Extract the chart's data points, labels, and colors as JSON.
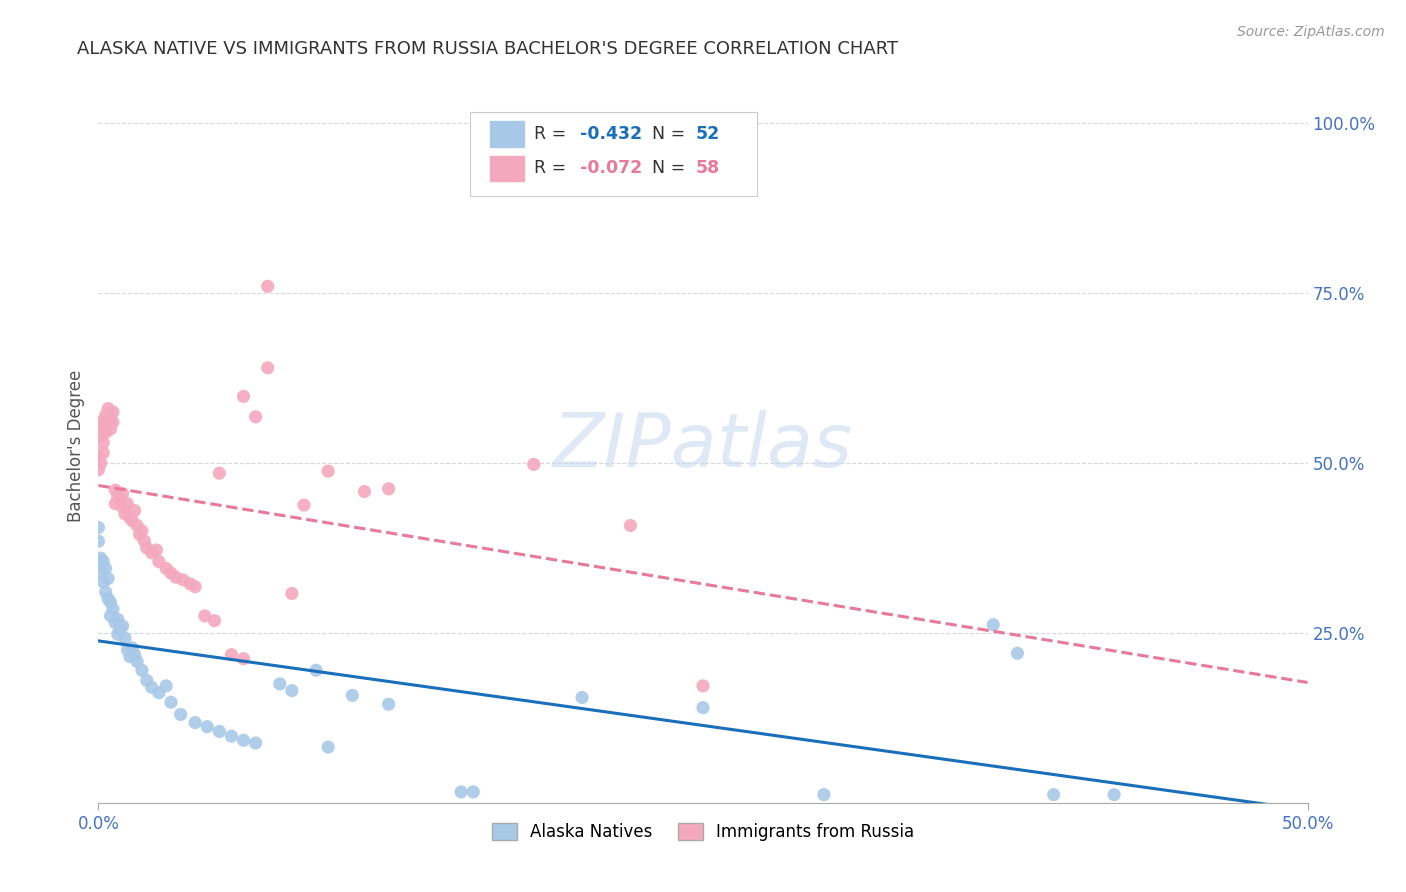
{
  "title": "ALASKA NATIVE VS IMMIGRANTS FROM RUSSIA BACHELOR'S DEGREE CORRELATION CHART",
  "source": "Source: ZipAtlas.com",
  "ylabel": "Bachelor's Degree",
  "right_yticks": [
    "100.0%",
    "75.0%",
    "50.0%",
    "25.0%"
  ],
  "right_ytick_vals": [
    1.0,
    0.75,
    0.5,
    0.25
  ],
  "legend_bottom": [
    "Alaska Natives",
    "Immigrants from Russia"
  ],
  "blue_line_color": "#1a6fba",
  "pink_line_color": "#e8799a",
  "blue_dot_color": "#a8c8e8",
  "pink_dot_color": "#f4a8c0",
  "bg_color": "#ffffff",
  "grid_color": "#d8d8d8",
  "title_color": "#333333",
  "axis_color": "#4472c4",
  "xlim": [
    0.0,
    0.5
  ],
  "ylim": [
    0.0,
    1.05
  ],
  "blue_scatter": [
    [
      0.0,
      0.405
    ],
    [
      0.0,
      0.385
    ],
    [
      0.001,
      0.36
    ],
    [
      0.001,
      0.34
    ],
    [
      0.002,
      0.355
    ],
    [
      0.002,
      0.325
    ],
    [
      0.003,
      0.345
    ],
    [
      0.003,
      0.31
    ],
    [
      0.004,
      0.33
    ],
    [
      0.004,
      0.3
    ],
    [
      0.005,
      0.295
    ],
    [
      0.005,
      0.275
    ],
    [
      0.006,
      0.285
    ],
    [
      0.007,
      0.265
    ],
    [
      0.008,
      0.27
    ],
    [
      0.008,
      0.248
    ],
    [
      0.009,
      0.255
    ],
    [
      0.01,
      0.26
    ],
    [
      0.011,
      0.242
    ],
    [
      0.012,
      0.225
    ],
    [
      0.013,
      0.215
    ],
    [
      0.014,
      0.228
    ],
    [
      0.015,
      0.218
    ],
    [
      0.016,
      0.208
    ],
    [
      0.018,
      0.195
    ],
    [
      0.02,
      0.18
    ],
    [
      0.022,
      0.17
    ],
    [
      0.025,
      0.162
    ],
    [
      0.028,
      0.172
    ],
    [
      0.03,
      0.148
    ],
    [
      0.034,
      0.13
    ],
    [
      0.04,
      0.118
    ],
    [
      0.045,
      0.112
    ],
    [
      0.05,
      0.105
    ],
    [
      0.055,
      0.098
    ],
    [
      0.06,
      0.092
    ],
    [
      0.065,
      0.088
    ],
    [
      0.075,
      0.175
    ],
    [
      0.08,
      0.165
    ],
    [
      0.09,
      0.195
    ],
    [
      0.095,
      0.082
    ],
    [
      0.105,
      0.158
    ],
    [
      0.12,
      0.145
    ],
    [
      0.15,
      0.016
    ],
    [
      0.155,
      0.016
    ],
    [
      0.2,
      0.155
    ],
    [
      0.25,
      0.14
    ],
    [
      0.3,
      0.012
    ],
    [
      0.37,
      0.262
    ],
    [
      0.38,
      0.22
    ],
    [
      0.395,
      0.012
    ],
    [
      0.42,
      0.012
    ]
  ],
  "pink_scatter": [
    [
      0.0,
      0.49
    ],
    [
      0.0,
      0.51
    ],
    [
      0.001,
      0.5
    ],
    [
      0.001,
      0.54
    ],
    [
      0.001,
      0.56
    ],
    [
      0.002,
      0.555
    ],
    [
      0.002,
      0.53
    ],
    [
      0.002,
      0.515
    ],
    [
      0.003,
      0.57
    ],
    [
      0.003,
      0.545
    ],
    [
      0.004,
      0.58
    ],
    [
      0.004,
      0.555
    ],
    [
      0.005,
      0.565
    ],
    [
      0.005,
      0.55
    ],
    [
      0.006,
      0.575
    ],
    [
      0.006,
      0.56
    ],
    [
      0.007,
      0.44
    ],
    [
      0.007,
      0.46
    ],
    [
      0.008,
      0.45
    ],
    [
      0.009,
      0.445
    ],
    [
      0.01,
      0.435
    ],
    [
      0.01,
      0.455
    ],
    [
      0.011,
      0.425
    ],
    [
      0.012,
      0.44
    ],
    [
      0.013,
      0.42
    ],
    [
      0.014,
      0.415
    ],
    [
      0.015,
      0.43
    ],
    [
      0.016,
      0.408
    ],
    [
      0.017,
      0.395
    ],
    [
      0.018,
      0.4
    ],
    [
      0.019,
      0.385
    ],
    [
      0.02,
      0.375
    ],
    [
      0.022,
      0.368
    ],
    [
      0.024,
      0.372
    ],
    [
      0.025,
      0.355
    ],
    [
      0.028,
      0.345
    ],
    [
      0.03,
      0.338
    ],
    [
      0.032,
      0.332
    ],
    [
      0.035,
      0.328
    ],
    [
      0.038,
      0.322
    ],
    [
      0.04,
      0.318
    ],
    [
      0.044,
      0.275
    ],
    [
      0.048,
      0.268
    ],
    [
      0.05,
      0.485
    ],
    [
      0.055,
      0.218
    ],
    [
      0.06,
      0.212
    ],
    [
      0.06,
      0.598
    ],
    [
      0.065,
      0.568
    ],
    [
      0.07,
      0.76
    ],
    [
      0.07,
      0.64
    ],
    [
      0.08,
      0.308
    ],
    [
      0.085,
      0.438
    ],
    [
      0.095,
      0.488
    ],
    [
      0.11,
      0.458
    ],
    [
      0.12,
      0.462
    ],
    [
      0.18,
      0.498
    ],
    [
      0.22,
      0.408
    ],
    [
      0.25,
      0.172
    ]
  ]
}
